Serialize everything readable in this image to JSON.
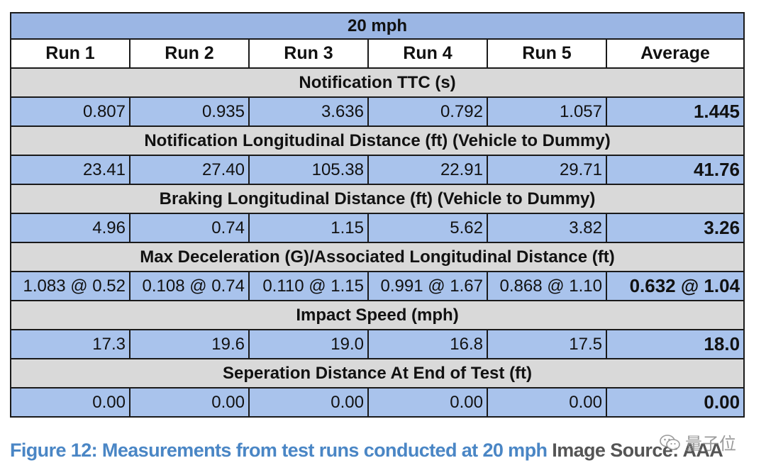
{
  "table": {
    "title": "20 mph",
    "headers": [
      "Run 1",
      "Run 2",
      "Run 3",
      "Run 4",
      "Run 5",
      "Average"
    ],
    "sections": [
      {
        "label": "Notification TTC (s)",
        "values": [
          "0.807",
          "0.935",
          "3.636",
          "0.792",
          "1.057",
          "1.445"
        ]
      },
      {
        "label": "Notification Longitudinal Distance (ft) (Vehicle to Dummy)",
        "values": [
          "23.41",
          "27.40",
          "105.38",
          "22.91",
          "29.71",
          "41.76"
        ]
      },
      {
        "label": "Braking Longitudinal Distance (ft) (Vehicle to Dummy)",
        "values": [
          "4.96",
          "0.74",
          "1.15",
          "5.62",
          "3.82",
          "3.26"
        ]
      },
      {
        "label": "Max Deceleration (G)/Associated Longitudinal Distance (ft)",
        "values": [
          "1.083 @ 0.52",
          "0.108 @ 0.74",
          "0.110 @ 1.15",
          "0.991 @ 1.67",
          "0.868 @ 1.10",
          "0.632 @ 1.04"
        ]
      },
      {
        "label": "Impact Speed (mph)",
        "values": [
          "17.3",
          "19.6",
          "19.0",
          "16.8",
          "17.5",
          "18.0"
        ]
      },
      {
        "label": "Seperation Distance At End of Test (ft)",
        "values": [
          "0.00",
          "0.00",
          "0.00",
          "0.00",
          "0.00",
          "0.00"
        ]
      }
    ]
  },
  "caption": {
    "main": "Figure 12: Measurements from test runs conducted at 20 mph",
    "source": "Image Source: AAA"
  },
  "watermark": {
    "text": "量子位",
    "icon": "wechat-icon"
  },
  "colors": {
    "title_bg": "#9bb6e4",
    "section_bg": "#d9d9d9",
    "value_bg": "#a9c3ec",
    "caption_blue": "#4a86c5"
  }
}
